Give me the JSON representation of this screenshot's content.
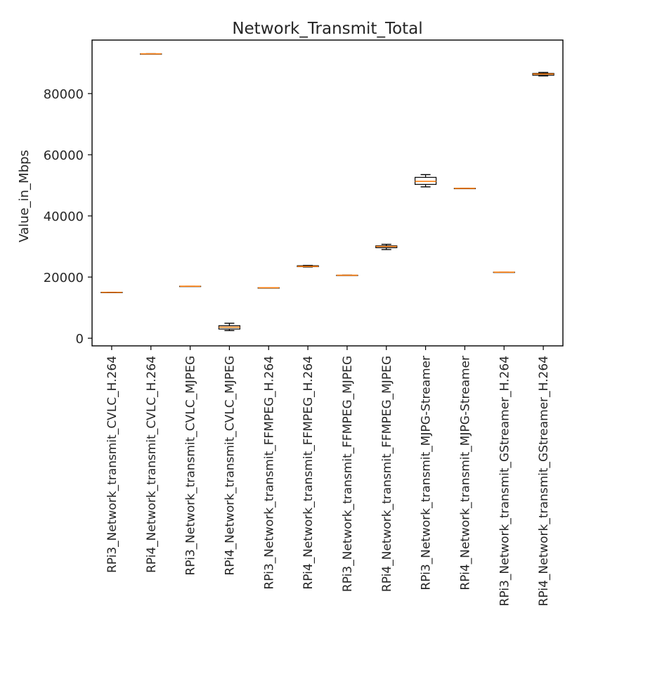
{
  "chart_data": {
    "type": "box",
    "title": "Network_Transmit_Total",
    "xlabel": "",
    "ylabel": "Value_in_Mbps",
    "ylim": [
      -2500,
      97500
    ],
    "yticks": [
      0,
      20000,
      40000,
      60000,
      80000
    ],
    "ytick_labels": [
      "0",
      "20000",
      "40000",
      "60000",
      "80000"
    ],
    "grid": false,
    "colors": {
      "median": "#ff7f0e",
      "box": "#000000"
    },
    "categories": [
      "RPi3_Network_transmit_CVLC_H.264",
      "RPi4_Network_transmit_CVLC_H.264",
      "RPi3_Network_transmit_CVLC_MJPEG",
      "RPi4_Network_transmit_CVLC_MJPEG",
      "RPi3_Network_transmit_FFMPEG_H.264",
      "RPi4_Network_transmit_FFMPEG_H.264",
      "RPi3_Network_transmit_FFMPEG_MJPEG",
      "RPi4_Network_transmit_FFMPEG_MJPEG",
      "RPi3_Network_transmit_MJPG-Streamer",
      "RPi4_Network_transmit_MJPG-Streamer",
      "RPi3_Network_transmit_GStreamer_H.264",
      "RPi4_Network_transmit_GStreamer_H.264"
    ],
    "boxes": [
      {
        "whislo": 15000,
        "q1": 15000,
        "med": 15000,
        "q3": 15000,
        "whishi": 15000
      },
      {
        "whislo": 93000,
        "q1": 93000,
        "med": 93000,
        "q3": 93000,
        "whishi": 93000
      },
      {
        "whislo": 17000,
        "q1": 17000,
        "med": 17000,
        "q3": 17000,
        "whishi": 17000
      },
      {
        "whislo": 2500,
        "q1": 3000,
        "med": 3600,
        "q3": 4100,
        "whishi": 4900
      },
      {
        "whislo": 16500,
        "q1": 16500,
        "med": 16500,
        "q3": 16500,
        "whishi": 16500
      },
      {
        "whislo": 23300,
        "q1": 23400,
        "med": 23500,
        "q3": 23700,
        "whishi": 23800
      },
      {
        "whislo": 20600,
        "q1": 20600,
        "med": 20600,
        "q3": 20600,
        "whishi": 20600
      },
      {
        "whislo": 29000,
        "q1": 29600,
        "med": 30000,
        "q3": 30200,
        "whishi": 30700
      },
      {
        "whislo": 49500,
        "q1": 50300,
        "med": 51300,
        "q3": 52600,
        "whishi": 53500
      },
      {
        "whislo": 49000,
        "q1": 49000,
        "med": 49000,
        "q3": 49000,
        "whishi": 49000
      },
      {
        "whislo": 21600,
        "q1": 21600,
        "med": 21600,
        "q3": 21600,
        "whishi": 21600
      },
      {
        "whislo": 85800,
        "q1": 86000,
        "med": 86400,
        "q3": 86600,
        "whishi": 86900
      }
    ]
  }
}
